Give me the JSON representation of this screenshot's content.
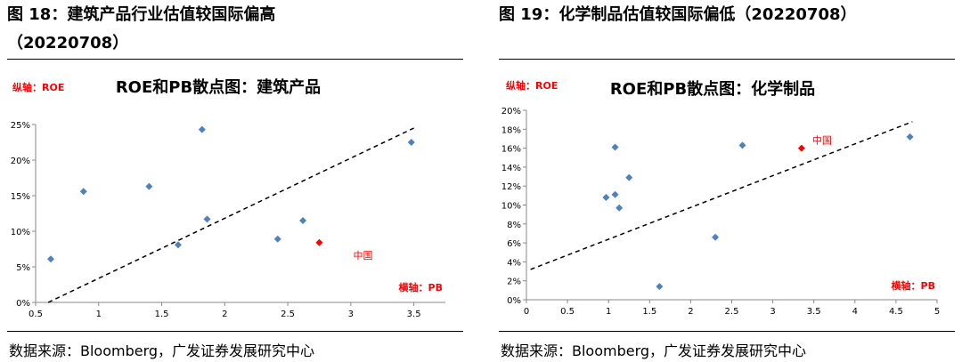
{
  "left": {
    "figure_title_line1": "图 18：建筑产品行业估值较国际偏高",
    "figure_title_line2": "（20220708）",
    "source": "数据来源：Bloomberg，广发证券发展研究中心"
  },
  "right": {
    "figure_title_line1": "图 19：化学制品估值较国际偏低（20220708）",
    "source": "数据来源：Bloomberg，广发证券发展研究中心"
  },
  "chart_data": [
    {
      "type": "scatter",
      "title": "ROE和PB散点图：建筑产品",
      "ylabel": "纵轴：ROE",
      "xlabel": "横轴：PB",
      "xlim": [
        0.5,
        3.75
      ],
      "ylim": [
        0,
        0.25
      ],
      "xticks": [
        "0.5",
        "1",
        "1.5",
        "2",
        "2.5",
        "3",
        "3.5"
      ],
      "yticks": [
        "0%",
        "5%",
        "10%",
        "15%",
        "20%",
        "25%"
      ],
      "points": [
        {
          "x": 0.62,
          "y": 0.061
        },
        {
          "x": 0.88,
          "y": 0.156
        },
        {
          "x": 1.4,
          "y": 0.163
        },
        {
          "x": 1.63,
          "y": 0.081
        },
        {
          "x": 1.82,
          "y": 0.243
        },
        {
          "x": 1.86,
          "y": 0.117
        },
        {
          "x": 2.42,
          "y": 0.089
        },
        {
          "x": 2.62,
          "y": 0.115
        },
        {
          "x": 3.48,
          "y": 0.225
        }
      ],
      "highlight": {
        "x": 2.75,
        "y": 0.084,
        "label": "中国",
        "color": "#ff0000"
      },
      "trendline": {
        "x0": 0.6,
        "y0": 0.0,
        "x1": 3.5,
        "y1": 0.245
      },
      "point_color": "#4f81bd"
    },
    {
      "type": "scatter",
      "title": "ROE和PB散点图：化学制品",
      "ylabel": "纵轴：ROE",
      "xlabel": "横轴：PB",
      "xlim": [
        0,
        5
      ],
      "ylim": [
        0,
        0.2
      ],
      "xticks": [
        "0",
        "0.5",
        "1",
        "1.5",
        "2",
        "2.5",
        "3",
        "3.5",
        "4",
        "4.5",
        "5"
      ],
      "yticks": [
        "0%",
        "2%",
        "4%",
        "6%",
        "8%",
        "10%",
        "12%",
        "14%",
        "16%",
        "18%",
        "20%"
      ],
      "points": [
        {
          "x": 0.97,
          "y": 0.108
        },
        {
          "x": 1.08,
          "y": 0.161
        },
        {
          "x": 1.08,
          "y": 0.111
        },
        {
          "x": 1.13,
          "y": 0.097
        },
        {
          "x": 1.25,
          "y": 0.129
        },
        {
          "x": 1.62,
          "y": 0.014
        },
        {
          "x": 2.3,
          "y": 0.066
        },
        {
          "x": 2.63,
          "y": 0.163
        },
        {
          "x": 4.67,
          "y": 0.172
        }
      ],
      "highlight": {
        "x": 3.35,
        "y": 0.16,
        "label": "中国",
        "color": "#ff0000"
      },
      "trendline": {
        "x0": 0.05,
        "y0": 0.032,
        "x1": 4.7,
        "y1": 0.188
      },
      "point_color": "#4f81bd"
    }
  ]
}
